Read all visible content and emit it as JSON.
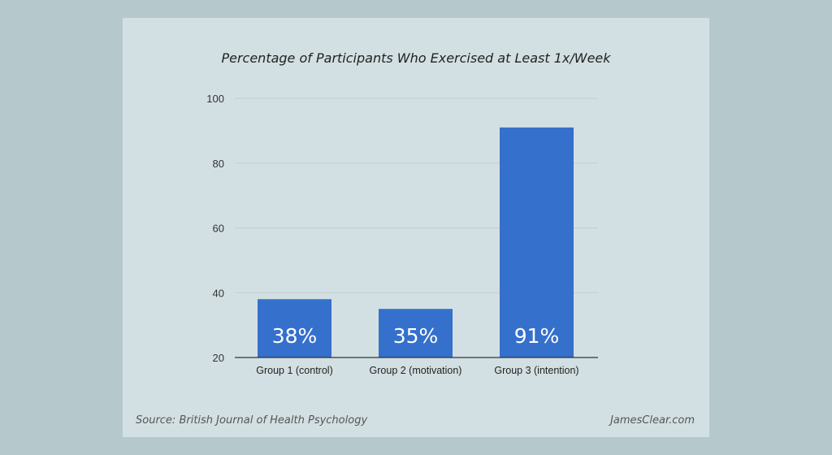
{
  "chart_data": {
    "type": "bar",
    "title": "Percentage of Participants Who Exercised at Least 1x/Week",
    "categories": [
      "Group 1 (control)",
      "Group 2 (motivation)",
      "Group 3 (intention)"
    ],
    "values": [
      38,
      35,
      91
    ],
    "data_labels": [
      "38%",
      "35%",
      "91%"
    ],
    "ylim": [
      20,
      100
    ],
    "yticks": [
      20,
      40,
      60,
      80,
      100
    ],
    "grid": true,
    "bar_color": "#3570cc"
  },
  "footer": {
    "source": "Source: British Journal of Health Psychology",
    "brand": "JamesClear.com"
  }
}
